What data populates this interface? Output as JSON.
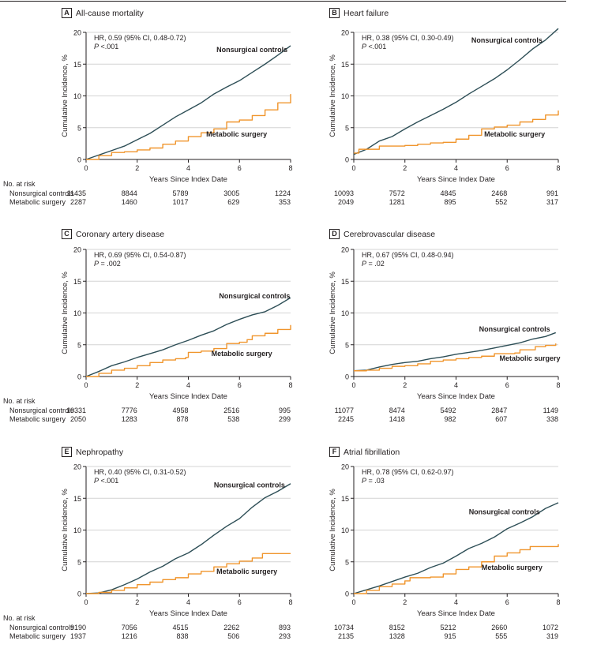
{
  "chart_data": [
    {
      "type": "line",
      "panel_letter": "A",
      "title": "All-cause mortality",
      "xlabel": "Years Since Index Date",
      "ylabel": "Cumulative Incidence, %",
      "xlim": [
        0,
        8
      ],
      "ylim": [
        0,
        20
      ],
      "xticks": [
        "0",
        "2",
        "4",
        "6",
        "8"
      ],
      "yticks": [
        "0",
        "5",
        "10",
        "15",
        "20"
      ],
      "grid": true,
      "annotation": {
        "hr": "HR, 0.59 (95% CI, 0.48-0.72)",
        "p_label": "P",
        "p_value": " <.001"
      },
      "series": [
        {
          "name": "Nonsurgical controls",
          "color": "#2d4e56",
          "x": [
            0,
            0.5,
            1,
            1.5,
            2,
            2.5,
            3,
            3.5,
            4,
            4.5,
            5,
            5.5,
            6,
            6.5,
            7,
            7.5,
            8
          ],
          "y": [
            0,
            0.7,
            1.4,
            2.1,
            3.1,
            4.1,
            5.4,
            6.7,
            7.8,
            8.9,
            10.3,
            11.4,
            12.4,
            13.7,
            15.0,
            16.4,
            17.9
          ]
        },
        {
          "name": "Metabolic surgery",
          "color": "#f0952c",
          "x": [
            0,
            0.5,
            1,
            1.5,
            2,
            2.5,
            3,
            3.5,
            4,
            4.5,
            5,
            5.5,
            6,
            6.5,
            7,
            7.5,
            8
          ],
          "y": [
            0,
            0.6,
            1.1,
            1.2,
            1.5,
            1.8,
            2.4,
            2.9,
            3.6,
            4.2,
            4.8,
            5.9,
            6.2,
            6.9,
            7.8,
            8.9,
            10.3
          ]
        }
      ],
      "series_labels": [
        {
          "text": "Nonsurgical controls",
          "x": 5.1,
          "y": 16.9
        },
        {
          "text": "Metabolic surgery",
          "x": 4.7,
          "y": 3.6
        }
      ],
      "risk_table": {
        "title": "No. at risk",
        "rows": [
          {
            "label": "Nonsurgical controls",
            "values": [
              "11435",
              "8844",
              "5789",
              "3005",
              "1224"
            ]
          },
          {
            "label": "Metabolic surgery",
            "values": [
              "2287",
              "1460",
              "1017",
              "629",
              "353"
            ]
          }
        ]
      }
    },
    {
      "type": "line",
      "panel_letter": "B",
      "title": "Heart failure",
      "xlabel": "Years Since Index Date",
      "ylabel": "Cumulative Incidence, %",
      "xlim": [
        0,
        8
      ],
      "ylim": [
        0,
        20
      ],
      "xticks": [
        "0",
        "2",
        "4",
        "6",
        "8"
      ],
      "yticks": [
        "0",
        "5",
        "10",
        "15",
        "20"
      ],
      "grid": true,
      "annotation": {
        "hr": "HR, 0.38 (95% CI, 0.30-0.49)",
        "p_label": "P",
        "p_value": " <.001"
      },
      "series": [
        {
          "name": "Nonsurgical controls",
          "color": "#2d4e56",
          "x": [
            0,
            0.5,
            1,
            1.5,
            2,
            2.5,
            3,
            3.5,
            4,
            4.5,
            5,
            5.5,
            6,
            6.5,
            7,
            7.5,
            8
          ],
          "y": [
            0.8,
            1.6,
            2.9,
            3.6,
            4.8,
            5.9,
            6.9,
            7.9,
            9.0,
            10.3,
            11.5,
            12.7,
            14.1,
            15.7,
            17.4,
            18.8,
            20.6
          ]
        },
        {
          "name": "Metabolic surgery",
          "color": "#f0952c",
          "x": [
            0,
            0.2,
            0.5,
            1,
            1.5,
            2,
            2.5,
            3,
            3.5,
            4,
            4.5,
            5,
            5.5,
            6,
            6.5,
            7,
            7.5,
            8
          ],
          "y": [
            1.0,
            1.6,
            1.6,
            2.1,
            2.1,
            2.2,
            2.4,
            2.6,
            2.7,
            3.2,
            3.8,
            4.8,
            5.1,
            5.4,
            5.9,
            6.3,
            7.0,
            7.7
          ]
        }
      ],
      "series_labels": [
        {
          "text": "Nonsurgical controls",
          "x": 4.6,
          "y": 18.4
        },
        {
          "text": "Metabolic surgery",
          "x": 5.1,
          "y": 3.6
        }
      ],
      "risk_table": {
        "title": "",
        "rows": [
          {
            "label": "",
            "values": [
              "10093",
              "7572",
              "4845",
              "2468",
              "991"
            ]
          },
          {
            "label": "",
            "values": [
              "2049",
              "1281",
              "895",
              "552",
              "317"
            ]
          }
        ]
      }
    },
    {
      "type": "line",
      "panel_letter": "C",
      "title": "Coronary artery disease",
      "xlabel": "Years Since Index Date",
      "ylabel": "Cumulative Incidence, %",
      "xlim": [
        0,
        8
      ],
      "ylim": [
        0,
        20
      ],
      "xticks": [
        "0",
        "2",
        "4",
        "6",
        "8"
      ],
      "yticks": [
        "0",
        "5",
        "10",
        "15",
        "20"
      ],
      "grid": true,
      "annotation": {
        "hr": "HR, 0.69 (95% CI, 0.54-0.87)",
        "p_label": "P",
        "p_value": " = .002"
      },
      "series": [
        {
          "name": "Nonsurgical controls",
          "color": "#2d4e56",
          "x": [
            0,
            0.5,
            1,
            1.5,
            2,
            2.5,
            3,
            3.5,
            4,
            4.5,
            5,
            5.5,
            6,
            6.5,
            7,
            7.5,
            8
          ],
          "y": [
            0,
            0.8,
            1.7,
            2.3,
            3.0,
            3.6,
            4.2,
            5.0,
            5.7,
            6.5,
            7.2,
            8.2,
            9.0,
            9.7,
            10.2,
            11.2,
            12.4
          ]
        },
        {
          "name": "Metabolic surgery",
          "color": "#f0952c",
          "x": [
            0,
            0.5,
            1,
            1.5,
            2,
            2.5,
            3,
            3.5,
            3.9,
            4.0,
            4.5,
            5,
            5.5,
            6,
            6.3,
            6.5,
            7,
            7.5,
            8
          ],
          "y": [
            0,
            0.5,
            1.0,
            1.3,
            1.7,
            2.2,
            2.6,
            2.8,
            3.0,
            3.8,
            4.0,
            4.4,
            5.2,
            5.4,
            5.8,
            6.4,
            6.8,
            7.4,
            8.1
          ]
        }
      ],
      "series_labels": [
        {
          "text": "Nonsurgical controls",
          "x": 5.2,
          "y": 12.3
        },
        {
          "text": "Metabolic surgery",
          "x": 4.9,
          "y": 3.2
        }
      ],
      "risk_table": {
        "title": "No. at risk",
        "rows": [
          {
            "label": "Nonsurgical controls",
            "values": [
              "10331",
              "7776",
              "4958",
              "2516",
              "995"
            ]
          },
          {
            "label": "Metabolic surgery",
            "values": [
              "2050",
              "1283",
              "878",
              "538",
              "299"
            ]
          }
        ]
      }
    },
    {
      "type": "line",
      "panel_letter": "D",
      "title": "Cerebrovascular disease",
      "xlabel": "Years Since Index Date",
      "ylabel": "Cumulative Incidence, %",
      "xlim": [
        0,
        8
      ],
      "ylim": [
        0,
        20
      ],
      "xticks": [
        "0",
        "2",
        "4",
        "6",
        "8"
      ],
      "yticks": [
        "0",
        "5",
        "10",
        "15",
        "20"
      ],
      "grid": true,
      "annotation": {
        "hr": "HR, 0.67 (95% CI, 0.48-0.94)",
        "p_label": "P",
        "p_value": " = .02"
      },
      "series": [
        {
          "name": "Nonsurgical controls",
          "color": "#2d4e56",
          "x": [
            0,
            0.5,
            1,
            1.5,
            2,
            2.5,
            3,
            3.5,
            4,
            4.5,
            5,
            5.5,
            6,
            6.5,
            7,
            7.5,
            7.9
          ],
          "y": [
            0.9,
            1.0,
            1.5,
            1.9,
            2.2,
            2.4,
            2.8,
            3.1,
            3.5,
            3.8,
            4.1,
            4.5,
            4.9,
            5.3,
            5.9,
            6.3,
            6.9
          ]
        },
        {
          "name": "Metabolic surgery",
          "color": "#f0952c",
          "x": [
            0,
            0.5,
            1,
            1.5,
            2,
            2.5,
            3,
            3.5,
            4,
            4.5,
            5,
            5.5,
            6,
            6.3,
            6.5,
            7,
            7.1,
            7.5,
            7.9
          ],
          "y": [
            0.9,
            1.0,
            1.3,
            1.6,
            1.7,
            2.0,
            2.4,
            2.6,
            2.8,
            3.0,
            3.2,
            3.6,
            3.6,
            3.7,
            4.2,
            4.2,
            4.7,
            4.9,
            5.2
          ]
        }
      ],
      "series_labels": [
        {
          "text": "Nonsurgical controls",
          "x": 4.9,
          "y": 7.1
        },
        {
          "text": "Metabolic surgery",
          "x": 5.7,
          "y": 2.5
        }
      ],
      "risk_table": {
        "title": "",
        "rows": [
          {
            "label": "",
            "values": [
              "11077",
              "8474",
              "5492",
              "2847",
              "1149"
            ]
          },
          {
            "label": "",
            "values": [
              "2245",
              "1418",
              "982",
              "607",
              "338"
            ]
          }
        ]
      }
    },
    {
      "type": "line",
      "panel_letter": "E",
      "title": "Nephropathy",
      "xlabel": "Years Since Index Date",
      "ylabel": "Cumulative Incidence, %",
      "xlim": [
        0,
        8
      ],
      "ylim": [
        0,
        20
      ],
      "xticks": [
        "0",
        "2",
        "4",
        "6",
        "8"
      ],
      "yticks": [
        "0",
        "5",
        "10",
        "15",
        "20"
      ],
      "grid": true,
      "annotation": {
        "hr": "HR, 0.40 (95% CI, 0.31-0.52)",
        "p_label": "P",
        "p_value": " <.001"
      },
      "series": [
        {
          "name": "Nonsurgical controls",
          "color": "#2d4e56",
          "x": [
            0,
            0.5,
            1,
            1.5,
            2,
            2.5,
            3,
            3.5,
            4,
            4.5,
            5,
            5.5,
            6,
            6.5,
            7,
            7.5,
            8
          ],
          "y": [
            0,
            0.1,
            0.6,
            1.4,
            2.3,
            3.4,
            4.3,
            5.5,
            6.4,
            7.7,
            9.2,
            10.6,
            11.8,
            13.6,
            15.1,
            16.1,
            17.3
          ]
        },
        {
          "name": "Metabolic surgery",
          "color": "#f0952c",
          "x": [
            0,
            0.5,
            1,
            1.5,
            2,
            2.5,
            3,
            3.5,
            4,
            4.5,
            5,
            5.5,
            6,
            6.5,
            6.9,
            7.5,
            8
          ],
          "y": [
            0,
            0.2,
            0.5,
            0.9,
            1.4,
            1.8,
            2.2,
            2.5,
            3.1,
            3.5,
            4.2,
            4.7,
            5.1,
            5.6,
            6.3,
            6.3,
            6.3
          ]
        }
      ],
      "series_labels": [
        {
          "text": "Nonsurgical controls",
          "x": 5.0,
          "y": 16.7
        },
        {
          "text": "Metabolic surgery",
          "x": 5.1,
          "y": 3.1
        }
      ],
      "risk_table": {
        "title": "No. at risk",
        "rows": [
          {
            "label": "Nonsurgical controls",
            "values": [
              "9190",
              "7056",
              "4515",
              "2262",
              "893"
            ]
          },
          {
            "label": "Metabolic surgery",
            "values": [
              "1937",
              "1216",
              "838",
              "506",
              "293"
            ]
          }
        ]
      }
    },
    {
      "type": "line",
      "panel_letter": "F",
      "title": "Atrial fibrillation",
      "xlabel": "Years Since Index Date",
      "ylabel": "Cumulative Incidence, %",
      "xlim": [
        0,
        8
      ],
      "ylim": [
        0,
        20
      ],
      "xticks": [
        "0",
        "2",
        "4",
        "6",
        "8"
      ],
      "yticks": [
        "0",
        "5",
        "10",
        "15",
        "20"
      ],
      "grid": true,
      "annotation": {
        "hr": "HR, 0.78 (95% CI, 0.62-0.97)",
        "p_label": "P",
        "p_value": " = .03"
      },
      "series": [
        {
          "name": "Nonsurgical controls",
          "color": "#2d4e56",
          "x": [
            0,
            0.5,
            1,
            1.5,
            2,
            2.5,
            3,
            3.5,
            4,
            4.5,
            5,
            5.5,
            6,
            6.5,
            7,
            7.5,
            8
          ],
          "y": [
            0,
            0.6,
            1.2,
            1.9,
            2.6,
            3.2,
            4.1,
            4.8,
            5.9,
            7.1,
            7.9,
            8.9,
            10.2,
            11.1,
            12.1,
            13.4,
            14.3
          ]
        },
        {
          "name": "Metabolic surgery",
          "color": "#f0952c",
          "x": [
            0,
            0.5,
            1,
            1.5,
            2,
            2.2,
            2.5,
            3,
            3.5,
            4,
            4.5,
            5,
            5.5,
            6,
            6.5,
            6.9,
            7.5,
            8
          ],
          "y": [
            0,
            0.5,
            1.1,
            1.5,
            2.0,
            2.5,
            2.5,
            2.6,
            3.1,
            3.8,
            4.2,
            5.0,
            5.9,
            6.4,
            6.9,
            7.4,
            7.4,
            7.8
          ]
        }
      ],
      "series_labels": [
        {
          "text": "Nonsurgical controls",
          "x": 4.5,
          "y": 12.5
        },
        {
          "text": "Metabolic surgery",
          "x": 5.0,
          "y": 3.7
        }
      ],
      "risk_table": {
        "title": "",
        "rows": [
          {
            "label": "",
            "values": [
              "10734",
              "8152",
              "5212",
              "2660",
              "1072"
            ]
          },
          {
            "label": "",
            "values": [
              "2135",
              "1328",
              "915",
              "555",
              "319"
            ]
          }
        ]
      }
    }
  ]
}
